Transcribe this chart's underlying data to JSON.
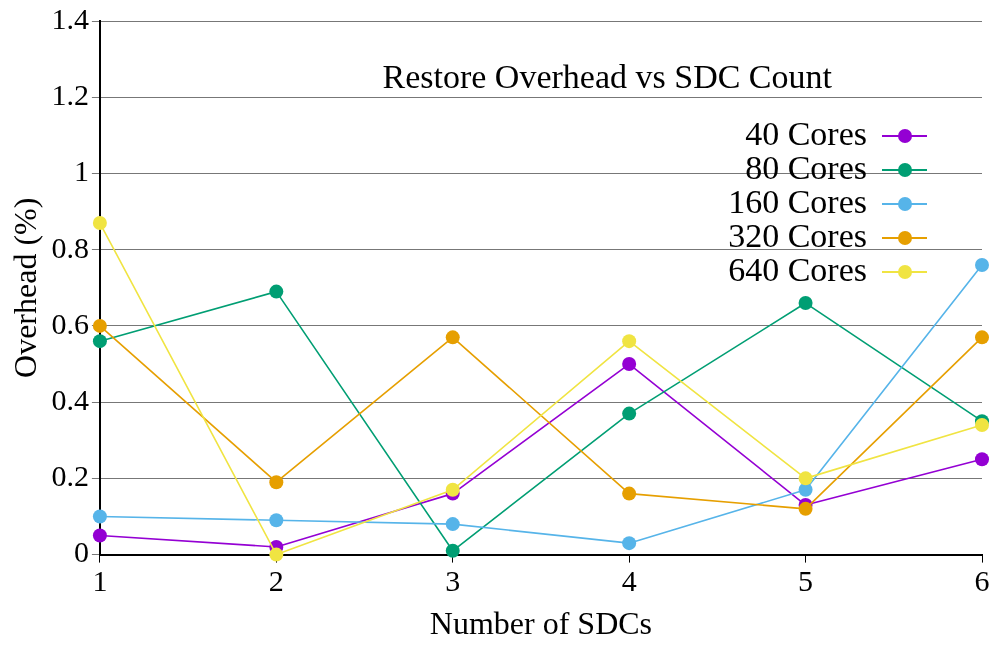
{
  "chart_data": {
    "type": "line",
    "title": "Restore Overhead vs SDC Count",
    "xlabel": "Number of SDCs",
    "ylabel": "Overhead (%)",
    "x": [
      1,
      2,
      3,
      4,
      5,
      6
    ],
    "xlim": [
      1,
      6
    ],
    "xticks": [
      1,
      2,
      3,
      4,
      5,
      6
    ],
    "ylim": [
      0,
      1.4
    ],
    "yticks": [
      0,
      0.2,
      0.4,
      0.6,
      0.8,
      1,
      1.2,
      1.4
    ],
    "grid": "y",
    "legend": "top right",
    "marker": "circle",
    "line_style": "solid",
    "series": [
      {
        "name": "40 Cores",
        "color": "#9400d3",
        "values": [
          0.05,
          0.02,
          0.16,
          0.5,
          0.13,
          0.25
        ]
      },
      {
        "name": "80 Cores",
        "color": "#009e73",
        "values": [
          0.56,
          0.69,
          0.01,
          0.37,
          0.66,
          0.35
        ]
      },
      {
        "name": "160 Cores",
        "color": "#56b4e9",
        "values": [
          0.1,
          0.09,
          0.08,
          0.03,
          0.17,
          0.76
        ]
      },
      {
        "name": "320 Cores",
        "color": "#e69f00",
        "values": [
          0.6,
          0.19,
          0.57,
          0.16,
          0.12,
          0.57
        ]
      },
      {
        "name": "640 Cores",
        "color": "#f0e442",
        "values": [
          0.87,
          0,
          0.17,
          0.56,
          0.2,
          0.34
        ]
      }
    ]
  }
}
